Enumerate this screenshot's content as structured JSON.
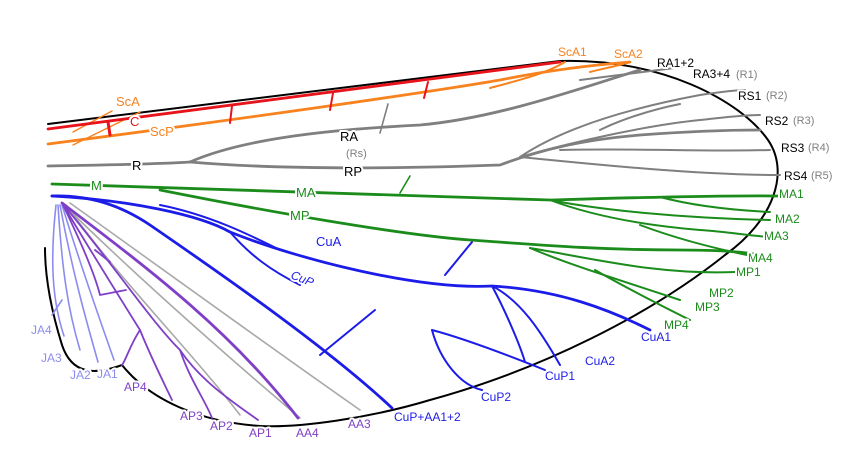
{
  "colors": {
    "costa": "#e8141b",
    "subcosta": "#f7821e",
    "radius": "#7f7f7f",
    "media": "#1b8c1b",
    "cubitus": "#1c1ce8",
    "anal_posterior": "#7f3fc6",
    "anal_anterior": "#a9a9a9",
    "jugal": "#8c8cf0",
    "outline": "#000000"
  },
  "labels": {
    "sca": "ScA",
    "c": "C",
    "scp": "ScP",
    "r": "R",
    "ra": "RA",
    "rs_paren": "(Rs)",
    "rp": "RP",
    "m": "M",
    "ma": "MA",
    "mp": "MP",
    "cua": "CuA",
    "cup": "CuP",
    "sca1": "ScA1",
    "sca2": "ScA2",
    "ra12": "RA1+2",
    "ra34": "RA3+4",
    "ra34_alt": "(R1)",
    "rs1": "RS1",
    "rs1_alt": "(R2)",
    "rs2": "RS2",
    "rs2_alt": "(R3)",
    "rs3": "RS3",
    "rs3_alt": "(R4)",
    "rs4": "RS4",
    "rs4_alt": "(R5)",
    "ma1": "MA1",
    "ma2": "MA2",
    "ma3": "MA3",
    "ma4": "MA4",
    "mp1": "MP1",
    "mp2": "MP2",
    "mp3": "MP3",
    "mp4": "MP4",
    "cua1": "CuA1",
    "cua2": "CuA2",
    "cup1": "CuP1",
    "cup2": "CuP2",
    "cup_aa12": "CuP+AA1+2",
    "aa3": "AA3",
    "aa4": "AA4",
    "ap1": "AP1",
    "ap2": "AP2",
    "ap3": "AP3",
    "ap4": "AP4",
    "ja1": "JA1",
    "ja2": "JA2",
    "ja3": "JA3",
    "ja4": "JA4"
  }
}
